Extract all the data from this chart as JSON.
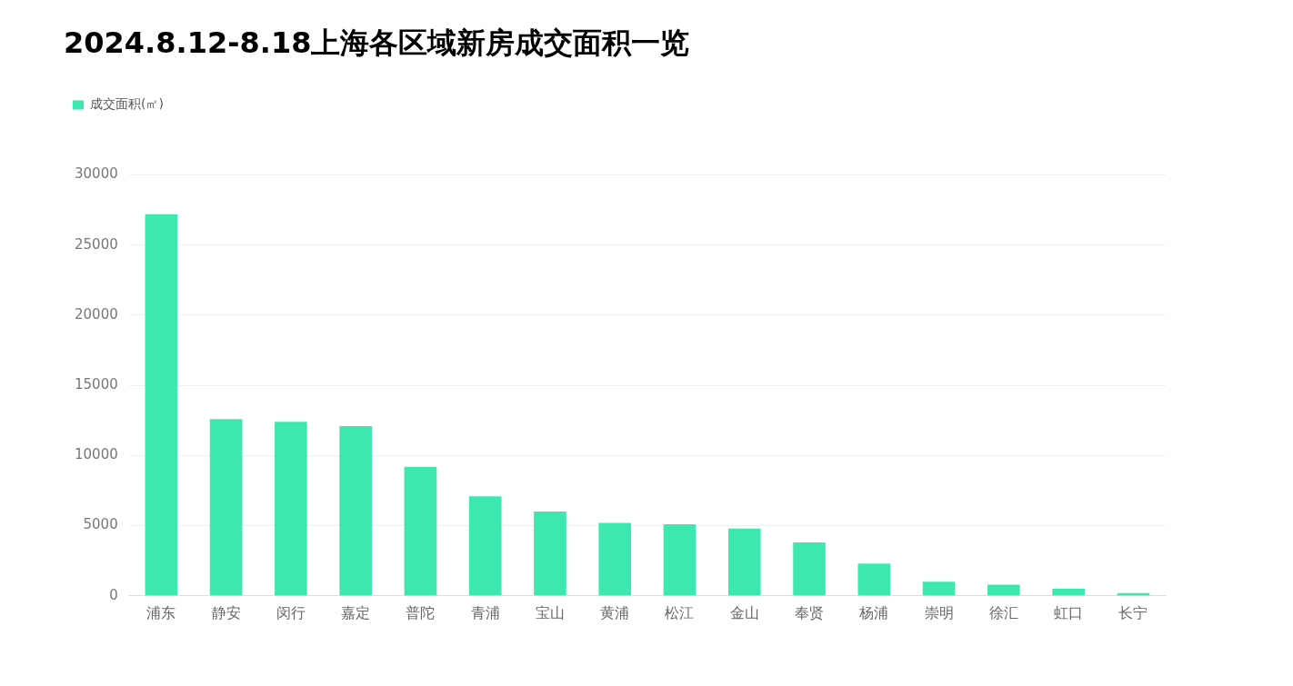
{
  "chart_data": {
    "type": "bar",
    "title": "2024.8.12-8.18上海各区域新房成交面积一览",
    "categories": [
      "浦东",
      "静安",
      "闵行",
      "嘉定",
      "普陀",
      "青浦",
      "宝山",
      "黄浦",
      "松江",
      "金山",
      "奉贤",
      "杨浦",
      "崇明",
      "徐汇",
      "虹口",
      "长宁"
    ],
    "series": [
      {
        "name": "成交面积(㎡)",
        "color": "#3de8b0",
        "values": [
          27200,
          12600,
          12400,
          12100,
          9200,
          7100,
          6000,
          5200,
          5100,
          4800,
          3800,
          2300,
          1000,
          800,
          500,
          200
        ]
      }
    ],
    "ylim": [
      0,
      30000
    ],
    "yticks": [
      0,
      5000,
      10000,
      15000,
      20000,
      25000,
      30000
    ],
    "grid": "y",
    "legend": "top left"
  }
}
